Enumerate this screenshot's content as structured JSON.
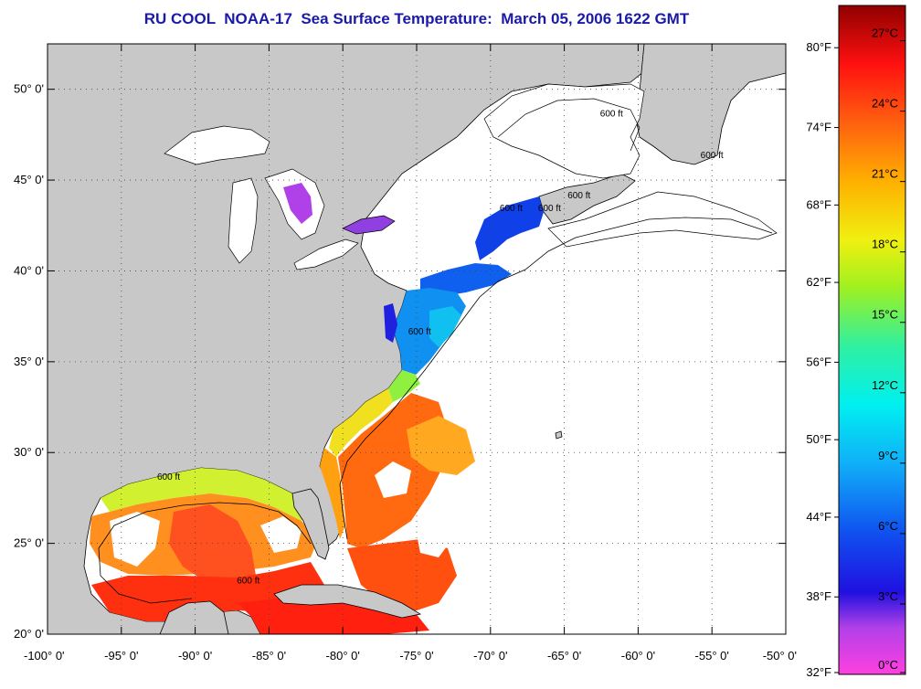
{
  "title": "RU COOL  NOAA-17  Sea Surface Temperature:  March 05, 2006 1622 GMT",
  "map": {
    "lon_range": [
      -100,
      -50
    ],
    "lat_range": [
      20,
      52.5
    ],
    "lon_ticks": [
      {
        "value": -100,
        "label": "-100° 0'"
      },
      {
        "value": -95,
        "label": "-95° 0'"
      },
      {
        "value": -90,
        "label": "-90° 0'"
      },
      {
        "value": -85,
        "label": "-85° 0'"
      },
      {
        "value": -80,
        "label": "-80° 0'"
      },
      {
        "value": -75,
        "label": "-75° 0'"
      },
      {
        "value": -70,
        "label": "-70° 0'"
      },
      {
        "value": -65,
        "label": "-65° 0'"
      },
      {
        "value": -60,
        "label": "-60° 0'"
      },
      {
        "value": -55,
        "label": "-55° 0'"
      },
      {
        "value": -50,
        "label": "-50° 0'"
      }
    ],
    "lat_ticks": [
      {
        "value": 20,
        "label": "20° 0'"
      },
      {
        "value": 25,
        "label": "25° 0'"
      },
      {
        "value": 30,
        "label": "30° 0'"
      },
      {
        "value": 35,
        "label": "35° 0'"
      },
      {
        "value": 40,
        "label": "40° 0'"
      },
      {
        "value": 45,
        "label": "45° 0'"
      },
      {
        "value": 50,
        "label": "50° 0'"
      }
    ],
    "gridlines": "dotted",
    "land_color": "#c8c8c8",
    "no_data_color": "#ffffff",
    "contour_labels": [
      {
        "text": "600 ft",
        "lon": -74.8,
        "lat": 36.5
      },
      {
        "text": "600 ft",
        "lon": -68.6,
        "lat": 43.3
      },
      {
        "text": "600 ft",
        "lon": -66.0,
        "lat": 43.3
      },
      {
        "text": "600 ft",
        "lon": -64.0,
        "lat": 44.0
      },
      {
        "text": "600 ft",
        "lon": -61.8,
        "lat": 48.5
      },
      {
        "text": "600 ft",
        "lon": -55.0,
        "lat": 46.2
      },
      {
        "text": "600 ft",
        "lon": -91.8,
        "lat": 28.5
      },
      {
        "text": "600 ft",
        "lon": -86.4,
        "lat": 22.8
      }
    ]
  },
  "colorbar": {
    "f_labels": [
      {
        "label": "80°F",
        "c": 26.7
      },
      {
        "label": "74°F",
        "c": 23.3
      },
      {
        "label": "68°F",
        "c": 20.0
      },
      {
        "label": "62°F",
        "c": 16.7
      },
      {
        "label": "56°F",
        "c": 13.3
      },
      {
        "label": "50°F",
        "c": 10.0
      },
      {
        "label": "44°F",
        "c": 6.7
      },
      {
        "label": "38°F",
        "c": 3.3
      },
      {
        "label": "32°F",
        "c": 0.0
      }
    ],
    "c_labels": [
      {
        "label": "27°C",
        "c": 27
      },
      {
        "label": "24°C",
        "c": 24
      },
      {
        "label": "21°C",
        "c": 21
      },
      {
        "label": "18°C",
        "c": 18
      },
      {
        "label": "15°C",
        "c": 15
      },
      {
        "label": "12°C",
        "c": 12
      },
      {
        "label": "9°C",
        "c": 9
      },
      {
        "label": "6°C",
        "c": 6
      },
      {
        "label": "3°C",
        "c": 3
      },
      {
        "label": "0°C",
        "c": 0
      }
    ],
    "range_c": [
      0,
      28.5
    ],
    "stops": [
      {
        "c": 0,
        "color": "#ff40e0"
      },
      {
        "c": 2,
        "color": "#b040e8"
      },
      {
        "c": 3.5,
        "color": "#2010e0"
      },
      {
        "c": 6,
        "color": "#1050f0"
      },
      {
        "c": 9,
        "color": "#10b0f8"
      },
      {
        "c": 11.5,
        "color": "#00f0f0"
      },
      {
        "c": 14,
        "color": "#30f0a0"
      },
      {
        "c": 16.5,
        "color": "#a0f020"
      },
      {
        "c": 18.5,
        "color": "#f0f010"
      },
      {
        "c": 21,
        "color": "#ffb000"
      },
      {
        "c": 23.5,
        "color": "#ff6010"
      },
      {
        "c": 26,
        "color": "#ff1010"
      },
      {
        "c": 28.5,
        "color": "#900000"
      }
    ]
  }
}
